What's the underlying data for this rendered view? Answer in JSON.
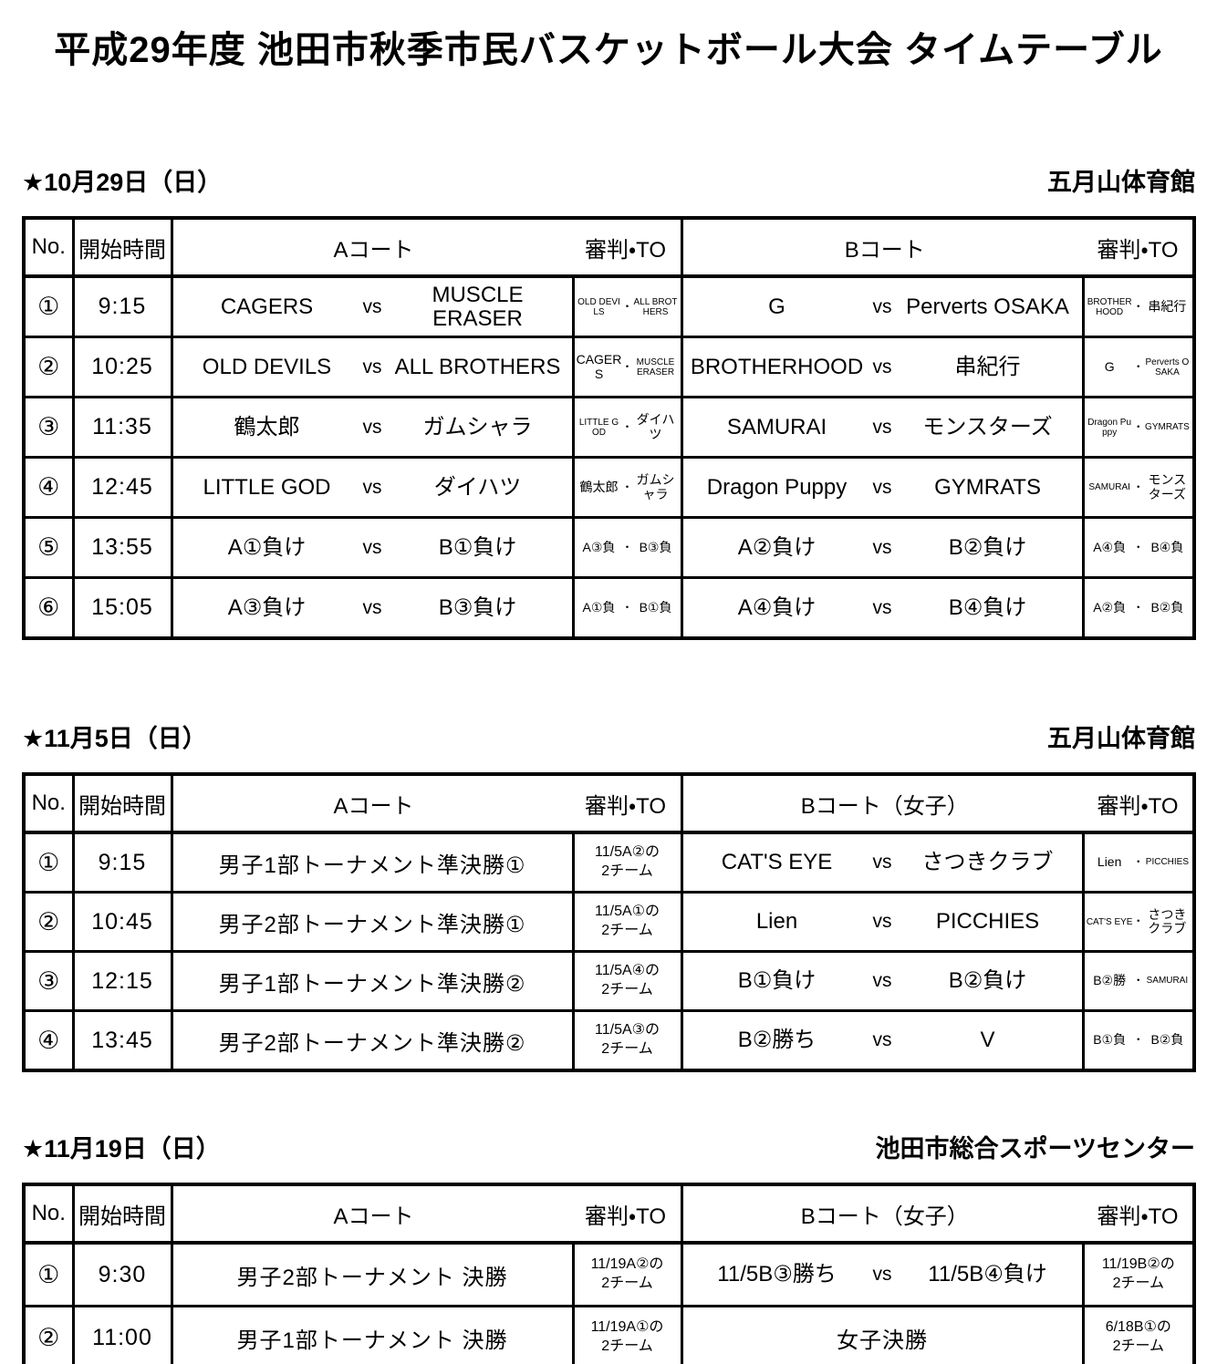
{
  "title": "平成29年度 池田市秋季市民バスケットボール大会 タイムテーブル",
  "referee_separator": "・",
  "sections": [
    {
      "date": "★10月29日（日）",
      "venue": "五月山体育館",
      "headers": {
        "no": "No.",
        "time": "開始時間",
        "court_a": "Aコート",
        "ref_a": "審判・TO",
        "court_b": "Bコート",
        "ref_b": "審判・TO"
      },
      "rows": [
        {
          "no": "①",
          "time": "9:15",
          "court_a": {
            "home": "CAGERS",
            "vs": "vs",
            "away": "MUSCLE ERASER"
          },
          "ref_a": {
            "pair": [
              "OLD DEVILS",
              "ALL BROTHERS"
            ]
          },
          "court_b": {
            "home": "G",
            "vs": "vs",
            "away": "Perverts OSAKA"
          },
          "ref_b": {
            "pair": [
              "BROTHERHOOD",
              "串紀行"
            ]
          }
        },
        {
          "no": "②",
          "time": "10:25",
          "court_a": {
            "home": "OLD DEVILS",
            "vs": "vs",
            "away": "ALL BROTHERS"
          },
          "ref_a": {
            "pair": [
              "CAGERS",
              "MUSCLE ERASER"
            ]
          },
          "court_b": {
            "home": "BROTHERHOOD",
            "vs": "vs",
            "away": "串紀行"
          },
          "ref_b": {
            "pair": [
              "G",
              "Perverts OSAKA"
            ]
          }
        },
        {
          "no": "③",
          "time": "11:35",
          "court_a": {
            "home": "鶴太郎",
            "vs": "vs",
            "away": "ガムシャラ"
          },
          "ref_a": {
            "pair": [
              "LITTLE GOD",
              "ダイハツ"
            ]
          },
          "court_b": {
            "home": "SAMURAI",
            "vs": "vs",
            "away": "モンスターズ"
          },
          "ref_b": {
            "pair": [
              "Dragon Puppy",
              "GYMRATS"
            ]
          }
        },
        {
          "no": "④",
          "time": "12:45",
          "court_a": {
            "home": "LITTLE GOD",
            "vs": "vs",
            "away": "ダイハツ"
          },
          "ref_a": {
            "pair": [
              "鶴太郎",
              "ガムシャラ"
            ]
          },
          "court_b": {
            "home": "Dragon Puppy",
            "vs": "vs",
            "away": "GYMRATS"
          },
          "ref_b": {
            "pair": [
              "SAMURAI",
              "モンスターズ"
            ]
          }
        },
        {
          "no": "⑤",
          "time": "13:55",
          "court_a": {
            "home": "A①負け",
            "vs": "vs",
            "away": "B①負け"
          },
          "ref_a": {
            "pair": [
              "A③負",
              "B③負"
            ]
          },
          "court_b": {
            "home": "A②負け",
            "vs": "vs",
            "away": "B②負け"
          },
          "ref_b": {
            "pair": [
              "A④負",
              "B④負"
            ]
          }
        },
        {
          "no": "⑥",
          "time": "15:05",
          "court_a": {
            "home": "A③負け",
            "vs": "vs",
            "away": "B③負け"
          },
          "ref_a": {
            "pair": [
              "A①負",
              "B①負"
            ]
          },
          "court_b": {
            "home": "A④負け",
            "vs": "vs",
            "away": "B④負け"
          },
          "ref_b": {
            "pair": [
              "A②負",
              "B②負"
            ]
          }
        }
      ]
    },
    {
      "date": "★11月5日（日）",
      "venue": "五月山体育館",
      "headers": {
        "no": "No.",
        "time": "開始時間",
        "court_a": "Aコート",
        "ref_a": "審判・TO",
        "court_b": "Bコート（女子）",
        "ref_b": "審判・TO"
      },
      "rows": [
        {
          "no": "①",
          "time": "9:15",
          "court_a": {
            "single": "男子1部トーナメント準決勝①"
          },
          "ref_a": {
            "lines": [
              "11/5A②の",
              "2チーム"
            ]
          },
          "court_b": {
            "home": "CAT'S EYE",
            "vs": "vs",
            "away": "さつきクラブ"
          },
          "ref_b": {
            "pair": [
              "Lien",
              "PICCHIES"
            ]
          }
        },
        {
          "no": "②",
          "time": "10:45",
          "court_a": {
            "single": "男子2部トーナメント準決勝①"
          },
          "ref_a": {
            "lines": [
              "11/5A①の",
              "2チーム"
            ]
          },
          "court_b": {
            "home": "Lien",
            "vs": "vs",
            "away": "PICCHIES"
          },
          "ref_b": {
            "pair": [
              "CAT'S EYE",
              "さつきクラブ"
            ]
          }
        },
        {
          "no": "③",
          "time": "12:15",
          "court_a": {
            "single": "男子1部トーナメント準決勝②"
          },
          "ref_a": {
            "lines": [
              "11/5A④の",
              "2チーム"
            ]
          },
          "court_b": {
            "home": "B①負け",
            "vs": "vs",
            "away": "B②負け"
          },
          "ref_b": {
            "pair": [
              "B②勝",
              "SAMURAI"
            ]
          }
        },
        {
          "no": "④",
          "time": "13:45",
          "court_a": {
            "single": "男子2部トーナメント準決勝②"
          },
          "ref_a": {
            "lines": [
              "11/5A③の",
              "2チーム"
            ]
          },
          "court_b": {
            "home": "B②勝ち",
            "vs": "vs",
            "away": "V"
          },
          "ref_b": {
            "pair": [
              "B①負",
              "B②負"
            ]
          }
        }
      ]
    },
    {
      "date": "★11月19日（日）",
      "venue": "池田市総合スポーツセンター",
      "headers": {
        "no": "No.",
        "time": "開始時間",
        "court_a": "Aコート",
        "ref_a": "審判・TO",
        "court_b": "Bコート（女子）",
        "ref_b": "審判・TO"
      },
      "rows": [
        {
          "no": "①",
          "time": "9:30",
          "court_a": {
            "single": "男子2部トーナメント 決勝"
          },
          "ref_a": {
            "lines": [
              "11/19A②の",
              "2チーム"
            ]
          },
          "court_b": {
            "home": "11/5B③勝ち",
            "vs": "vs",
            "away": "11/5B④負け"
          },
          "ref_b": {
            "lines": [
              "11/19B②の",
              "2チーム"
            ]
          }
        },
        {
          "no": "②",
          "time": "11:00",
          "court_a": {
            "single": "男子1部トーナメント 決勝"
          },
          "ref_a": {
            "lines": [
              "11/19A①の",
              "2チーム"
            ]
          },
          "court_b": {
            "single": "女子決勝"
          },
          "ref_b": {
            "lines": [
              "6/18B①の",
              "2チーム"
            ]
          }
        }
      ]
    }
  ]
}
